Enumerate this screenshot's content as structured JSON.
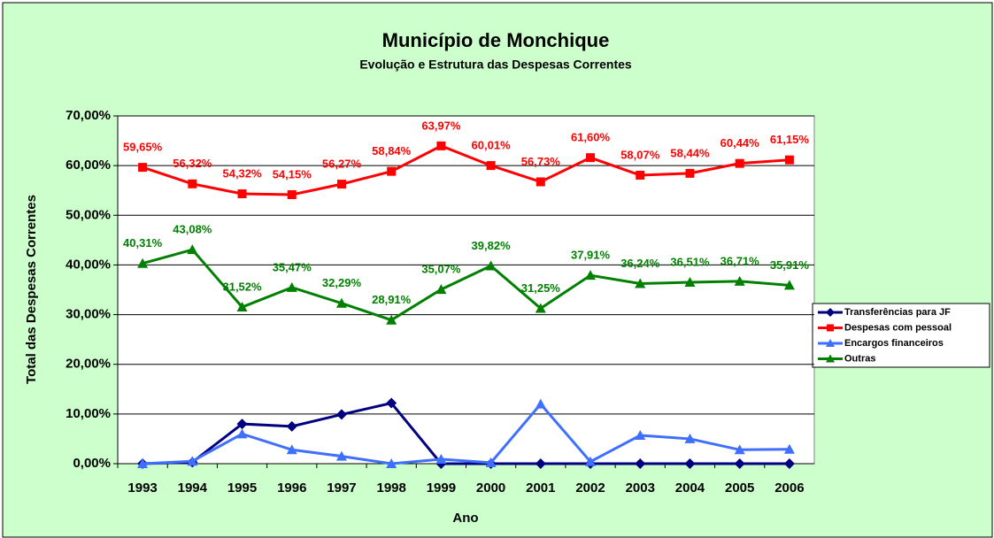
{
  "chart_data": {
    "type": "line",
    "title": "Município de Monchique",
    "subtitle": "Evolução e Estrutura das Despesas Correntes",
    "x_label": "Ano",
    "y_label": "Total das Despesas Correntes",
    "categories": [
      "1993",
      "1994",
      "1995",
      "1996",
      "1997",
      "1998",
      "1999",
      "2000",
      "2001",
      "2002",
      "2003",
      "2004",
      "2005",
      "2006"
    ],
    "ylim": [
      0,
      70
    ],
    "yticks": [
      {
        "value": 0,
        "label": "0,00%"
      },
      {
        "value": 10,
        "label": "10,00%"
      },
      {
        "value": 20,
        "label": "20,00%"
      },
      {
        "value": 30,
        "label": "30,00%"
      },
      {
        "value": 40,
        "label": "40,00%"
      },
      {
        "value": 50,
        "label": "50,00%"
      },
      {
        "value": 60,
        "label": "60,00%"
      },
      {
        "value": 70,
        "label": "70,00%"
      }
    ],
    "grid": true,
    "legend": "right",
    "series": [
      {
        "name": "Transferências para JF",
        "color": "#000080",
        "marker": "diamond",
        "values": [
          0,
          0.3,
          8.0,
          7.5,
          9.9,
          12.2,
          0,
          0,
          0,
          0,
          0,
          0,
          0,
          0
        ]
      },
      {
        "name": "Despesas com pessoal",
        "color": "#ff0000",
        "marker": "square",
        "values": [
          59.65,
          56.32,
          54.32,
          54.15,
          56.27,
          58.84,
          63.97,
          60.01,
          56.73,
          61.6,
          58.07,
          58.44,
          60.44,
          61.15
        ],
        "value_labels": [
          "59,65%",
          "56,32%",
          "54,32%",
          "54,15%",
          "56,27%",
          "58,84%",
          "63,97%",
          "60,01%",
          "56,73%",
          "61,60%",
          "58,07%",
          "58,44%",
          "60,44%",
          "61,15%"
        ]
      },
      {
        "name": "Encargos financeiros",
        "color": "#3f6fff",
        "marker": "triangle",
        "values": [
          0,
          0.5,
          6.0,
          2.8,
          1.5,
          0,
          0.9,
          0.2,
          12.0,
          0.4,
          5.7,
          5.0,
          2.8,
          2.9
        ]
      },
      {
        "name": "Outras",
        "color": "#008000",
        "marker": "triangle",
        "values": [
          40.31,
          43.08,
          31.52,
          35.47,
          32.29,
          28.91,
          35.07,
          39.82,
          31.25,
          37.91,
          36.24,
          36.51,
          36.71,
          35.91
        ],
        "value_labels": [
          "40,31%",
          "43,08%",
          "31,52%",
          "35,47%",
          "32,29%",
          "28,91%",
          "35,07%",
          "39,82%",
          "31,25%",
          "37,91%",
          "36,24%",
          "36,51%",
          "36,71%",
          "35,91%"
        ]
      }
    ]
  }
}
